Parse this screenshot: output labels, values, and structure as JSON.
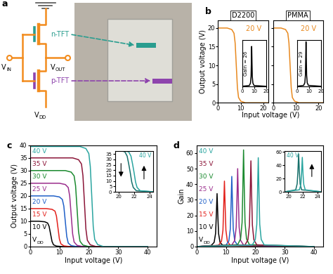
{
  "diagram": {
    "panel": "a",
    "labels": {
      "n_tft": "n-TFT",
      "p_tft": "p-TFT",
      "input": {
        "text": "V",
        "subscript": "IN"
      },
      "output": {
        "text": "V",
        "subscript": "OUT"
      },
      "supply": {
        "text": "V",
        "subscript": "DD"
      }
    }
  },
  "chart_data": [
    {
      "type": "line",
      "panel": "b",
      "title": "D2200",
      "x_label": "Input voltage (V)",
      "y_label": "Output voltage (V)",
      "xlim": [
        0,
        22
      ],
      "xticks": [
        0,
        10,
        20
      ],
      "ylim": [
        0,
        22
      ],
      "yticks": [
        0,
        5,
        10,
        15,
        20
      ],
      "series": [
        {
          "name": "20 V",
          "color": "#e8891f",
          "x": [
            0,
            4,
            6,
            7,
            7.5,
            8,
            8.5,
            9,
            10,
            12,
            22
          ],
          "values": [
            20,
            20,
            19.6,
            18.6,
            16,
            10,
            4,
            1.4,
            0.4,
            0,
            0
          ]
        }
      ],
      "inset": {
        "type": "line",
        "xlim": [
          0,
          20
        ],
        "xticks": [
          0,
          10,
          20
        ],
        "ylim": [
          0,
          30
        ],
        "tick_labels": "x",
        "annotation": "Gain = 26",
        "series": [
          {
            "color": "#000000",
            "x": [
              0,
              6,
              7,
              7.5,
              7.75,
              8,
              8.25,
              8.5,
              9,
              10,
              20
            ],
            "values": [
              0,
              0.5,
              2.1,
              6.5,
              15.6,
              26,
              15.6,
              6.5,
              2.1,
              0.5,
              0
            ]
          }
        ]
      }
    },
    {
      "type": "line",
      "title": "PMMA",
      "tick_labels": "x",
      "xlim": [
        0,
        22
      ],
      "xticks": [
        0,
        10,
        20
      ],
      "ylim": [
        0,
        22
      ],
      "yticks": [
        0,
        5,
        10,
        15,
        20
      ],
      "series": [
        {
          "name": "20 V",
          "color": "#e8891f",
          "x": [
            0,
            3.5,
            5.5,
            6.5,
            7,
            7.5,
            8,
            8.5,
            9.5,
            11.5,
            22
          ],
          "values": [
            20,
            20,
            19.6,
            18.6,
            16,
            10,
            4,
            1.4,
            0.4,
            0,
            0
          ]
        }
      ],
      "inset": {
        "type": "line",
        "xlim": [
          0,
          20
        ],
        "xticks": [
          0,
          10,
          20
        ],
        "ylim": [
          0,
          30
        ],
        "tick_labels": "x",
        "annotation": "Gain = 29",
        "series": [
          {
            "color": "#000000",
            "x": [
              0,
              5.5,
              6.5,
              7,
              7.25,
              7.5,
              7.75,
              8,
              8.5,
              9.5,
              20
            ],
            "values": [
              0,
              0.6,
              2.3,
              7.3,
              17.4,
              29,
              17.4,
              7.3,
              2.3,
              0.6,
              0
            ]
          }
        ]
      }
    },
    {
      "type": "line",
      "panel": "c",
      "x_label": "Input voltage (V)",
      "y_label": "Output voltage (V)",
      "xlim": [
        0,
        43
      ],
      "xticks": [
        0,
        10,
        20,
        30,
        40
      ],
      "ylim": [
        0,
        40
      ],
      "yticks": [
        0,
        5,
        10,
        15,
        20,
        25,
        30,
        35,
        40
      ],
      "annotation": {
        "text": "V",
        "subscript": "DD"
      },
      "series": [
        {
          "name": "10 V",
          "color": "#000000",
          "x": [
            0,
            3,
            5,
            6,
            6.5,
            7,
            7.5,
            8,
            9,
            11,
            40
          ],
          "values": [
            10,
            10,
            9.8,
            9.3,
            8,
            5,
            2,
            0.7,
            0.2,
            0,
            0
          ]
        },
        {
          "name": "15 V",
          "color": "#e3211c",
          "x": [
            0,
            5.5,
            7.5,
            8.5,
            9,
            9.5,
            10,
            10.5,
            11.5,
            13.5,
            40
          ],
          "values": [
            15,
            15,
            14.7,
            14,
            12,
            7.5,
            3,
            1.1,
            0.3,
            0,
            0
          ]
        },
        {
          "name": "20 V",
          "color": "#2060c8",
          "x": [
            0,
            8,
            10,
            11,
            11.5,
            12,
            12.5,
            13,
            14,
            16,
            40
          ],
          "values": [
            20,
            20,
            19.6,
            18.6,
            16,
            10,
            4,
            1.4,
            0.4,
            0,
            0
          ]
        },
        {
          "name": "25 V",
          "color": "#9b2d8c",
          "x": [
            0,
            10,
            12,
            13,
            13.5,
            14,
            14.5,
            15,
            16,
            18,
            40
          ],
          "values": [
            25,
            25,
            24.5,
            23.3,
            20,
            12.5,
            5,
            1.8,
            0.5,
            0,
            0
          ]
        },
        {
          "name": "30 V",
          "color": "#1b8a2f",
          "x": [
            0,
            12,
            14,
            15,
            15.5,
            16,
            16.5,
            17,
            18,
            20,
            40
          ],
          "values": [
            30,
            30,
            29.4,
            27.9,
            24,
            15,
            6,
            2.1,
            0.6,
            0,
            0
          ]
        },
        {
          "name": "35 V",
          "color": "#8b1538",
          "x": [
            0,
            14.5,
            16.5,
            17.5,
            18,
            18.5,
            19,
            19.5,
            20.5,
            22.5,
            40
          ],
          "values": [
            35,
            35,
            34.3,
            32.6,
            28,
            17.5,
            7,
            2.5,
            0.7,
            0,
            0
          ]
        },
        {
          "name": "40 V",
          "color": "#2aa5a0",
          "x": [
            0,
            17,
            19,
            20,
            20.5,
            21,
            21.5,
            22,
            23,
            25,
            40
          ],
          "values": [
            39.5,
            39.5,
            38.7,
            36.7,
            31.6,
            19.8,
            7.9,
            2.8,
            0.8,
            0,
            0
          ]
        }
      ],
      "inset": {
        "type": "line",
        "xlim": [
          19.5,
          24.5
        ],
        "xticks": [
          20,
          22,
          24
        ],
        "ylim": [
          0,
          38
        ],
        "yticks": [
          0,
          5,
          10,
          15,
          20,
          25,
          30,
          35
        ],
        "annotation": "40 V",
        "series": [
          {
            "color": "#17706b",
            "x": [
              19.5,
              20.8,
              21.1,
              21.3,
              21.5,
              21.7,
              21.9,
              22.3,
              24.5
            ],
            "values": [
              39.5,
              37,
              33,
              26,
              18,
              9,
              4,
              1,
              0
            ]
          },
          {
            "color": "#2aa5a0",
            "x": [
              19.5,
              21.3,
              21.6,
              21.8,
              22.0,
              22.2,
              22.4,
              22.8,
              24.5
            ],
            "values": [
              39.5,
              37,
              33,
              26,
              18,
              9,
              4,
              1,
              0
            ]
          }
        ]
      }
    },
    {
      "type": "line",
      "panel": "d",
      "x_label": "Input voltage (V)",
      "y_label": "Gain",
      "xlim": [
        0,
        43
      ],
      "xticks": [
        0,
        10,
        20,
        30,
        40
      ],
      "ylim": [
        0,
        65
      ],
      "yticks": [
        0,
        10,
        20,
        30,
        40,
        50,
        60
      ],
      "annotation": {
        "text": "V",
        "subscript": "DD"
      },
      "series": [
        {
          "name": "10 V",
          "color": "#000000",
          "x": [
            0,
            5,
            6,
            6.5,
            6.75,
            7,
            7.25,
            7.5,
            8,
            9,
            40
          ],
          "values": [
            0,
            0.7,
            2.7,
            8.5,
            20.4,
            34,
            20.4,
            8.5,
            2.7,
            0.7,
            0
          ]
        },
        {
          "name": "15 V",
          "color": "#e3211c",
          "x": [
            0,
            7.5,
            8.5,
            9,
            9.25,
            9.5,
            9.75,
            10,
            10.5,
            11.5,
            40
          ],
          "values": [
            0,
            0.8,
            3.4,
            10.5,
            25.2,
            42,
            25.2,
            10.5,
            3.4,
            0.8,
            0
          ]
        },
        {
          "name": "20 V",
          "color": "#2060c8",
          "x": [
            0,
            10,
            11,
            11.5,
            11.75,
            12,
            12.25,
            12.5,
            13,
            14,
            40
          ],
          "values": [
            0,
            0.9,
            3.6,
            11.3,
            27,
            45,
            27,
            11.3,
            3.6,
            0.9,
            0
          ]
        },
        {
          "name": "25 V",
          "color": "#9b2d8c",
          "x": [
            0,
            12,
            13,
            13.5,
            13.75,
            14,
            14.25,
            14.5,
            15,
            16,
            40
          ],
          "values": [
            0,
            1,
            4,
            12.5,
            30,
            50,
            30,
            12.5,
            4,
            1,
            0
          ]
        },
        {
          "name": "30 V",
          "color": "#1b8a2f",
          "x": [
            0,
            14,
            15,
            15.5,
            15.75,
            16,
            16.25,
            16.5,
            17,
            18,
            40
          ],
          "values": [
            0,
            1.2,
            5,
            15.5,
            37.2,
            62,
            37.2,
            15.5,
            5,
            1.2,
            0
          ]
        },
        {
          "name": "35 V",
          "color": "#8b1538",
          "x": [
            0,
            16.5,
            17.5,
            18,
            18.25,
            18.5,
            18.75,
            19,
            19.5,
            20.5,
            40
          ],
          "values": [
            0,
            1.1,
            4.4,
            13.8,
            33,
            55,
            33,
            13.8,
            4.4,
            1.1,
            0
          ]
        },
        {
          "name": "40 V",
          "color": "#2aa5a0",
          "x": [
            0,
            19,
            20,
            20.5,
            20.75,
            21,
            21.25,
            21.5,
            22,
            23,
            40
          ],
          "values": [
            0,
            1.1,
            4.6,
            14.3,
            34.2,
            57,
            34.2,
            14.3,
            4.6,
            1.1,
            0
          ]
        }
      ],
      "inset": {
        "type": "line",
        "xlim": [
          19.5,
          24.5
        ],
        "xticks": [
          20,
          22,
          24
        ],
        "ylim": [
          0,
          62
        ],
        "yticks": [
          0,
          20,
          40,
          60
        ],
        "annotation": "40 V",
        "series": [
          {
            "color": "#17706b",
            "x": [
              19.5,
              21.0,
              21.2,
              21.3,
              21.4,
              21.5,
              21.6,
              21.8,
              24.5
            ],
            "values": [
              0,
              3,
              12,
              30,
              57,
              30,
              12,
              3,
              0
            ]
          },
          {
            "color": "#2aa5a0",
            "x": [
              19.5,
              21.5,
              21.7,
              21.8,
              21.9,
              22.0,
              22.1,
              22.3,
              24.5
            ],
            "values": [
              0,
              3,
              11,
              27,
              52,
              27,
              11,
              3,
              0
            ]
          }
        ]
      }
    }
  ]
}
